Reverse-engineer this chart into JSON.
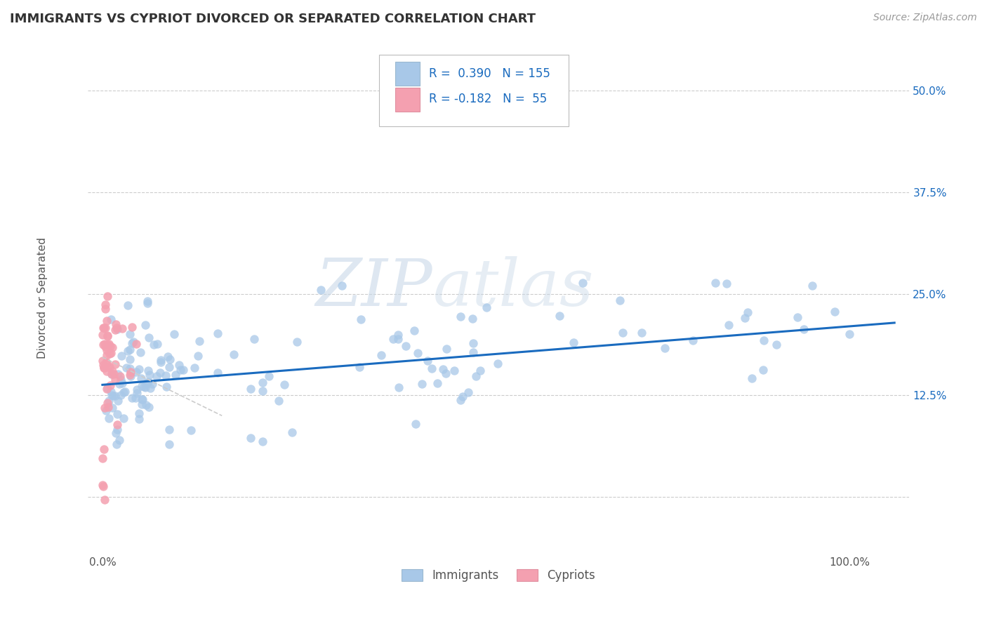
{
  "title": "IMMIGRANTS VS CYPRIOT DIVORCED OR SEPARATED CORRELATION CHART",
  "source_text": "Source: ZipAtlas.com",
  "ylabel": "Divorced or Separated",
  "legend_immigrants": "Immigrants",
  "legend_cypriots": "Cypriots",
  "R_immigrants": 0.39,
  "N_immigrants": 155,
  "R_cypriots": -0.182,
  "N_cypriots": 55,
  "xlim": [
    -0.02,
    1.08
  ],
  "ylim": [
    -0.07,
    0.56
  ],
  "yticks": [
    0.0,
    0.125,
    0.25,
    0.375,
    0.5
  ],
  "yticklabels_right": [
    "",
    "12.5%",
    "25.0%",
    "37.5%",
    "50.0%"
  ],
  "immigrant_color": "#a8c8e8",
  "cypriot_color": "#f4a0b0",
  "trend_color": "#1a6bbf",
  "cypriot_trend_color": "#cccccc",
  "background_color": "#ffffff",
  "grid_color": "#cccccc",
  "title_color": "#333333",
  "legend_text_color": "#1a6bbf",
  "trend_immigrants_intercept": 0.138,
  "trend_immigrants_slope": 0.072,
  "trend_cypriots_intercept": 0.172,
  "trend_cypriots_slope": -0.45
}
